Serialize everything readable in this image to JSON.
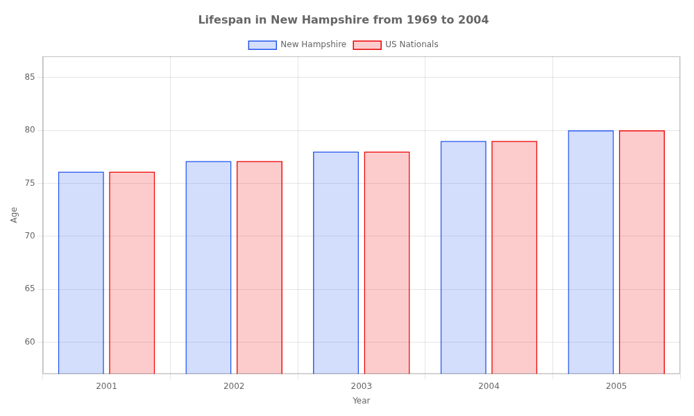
{
  "chart_data": {
    "type": "bar",
    "title": "Lifespan in New Hampshire from 1969 to 2004",
    "xlabel": "Year",
    "ylabel": "Age",
    "categories": [
      "2001",
      "2002",
      "2003",
      "2004",
      "2005"
    ],
    "series": [
      {
        "name": "New Hampshire",
        "color": "#2255ee",
        "values": [
          76.1,
          77.1,
          78.0,
          79.0,
          80.0
        ]
      },
      {
        "name": "US Nationals",
        "color": "#ee0000",
        "values": [
          76.1,
          77.1,
          78.0,
          79.0,
          80.0
        ]
      }
    ],
    "ylim": [
      57,
      87
    ],
    "yticks": [
      60,
      65,
      70,
      75,
      80,
      85
    ],
    "grid": true,
    "legend": "top"
  }
}
